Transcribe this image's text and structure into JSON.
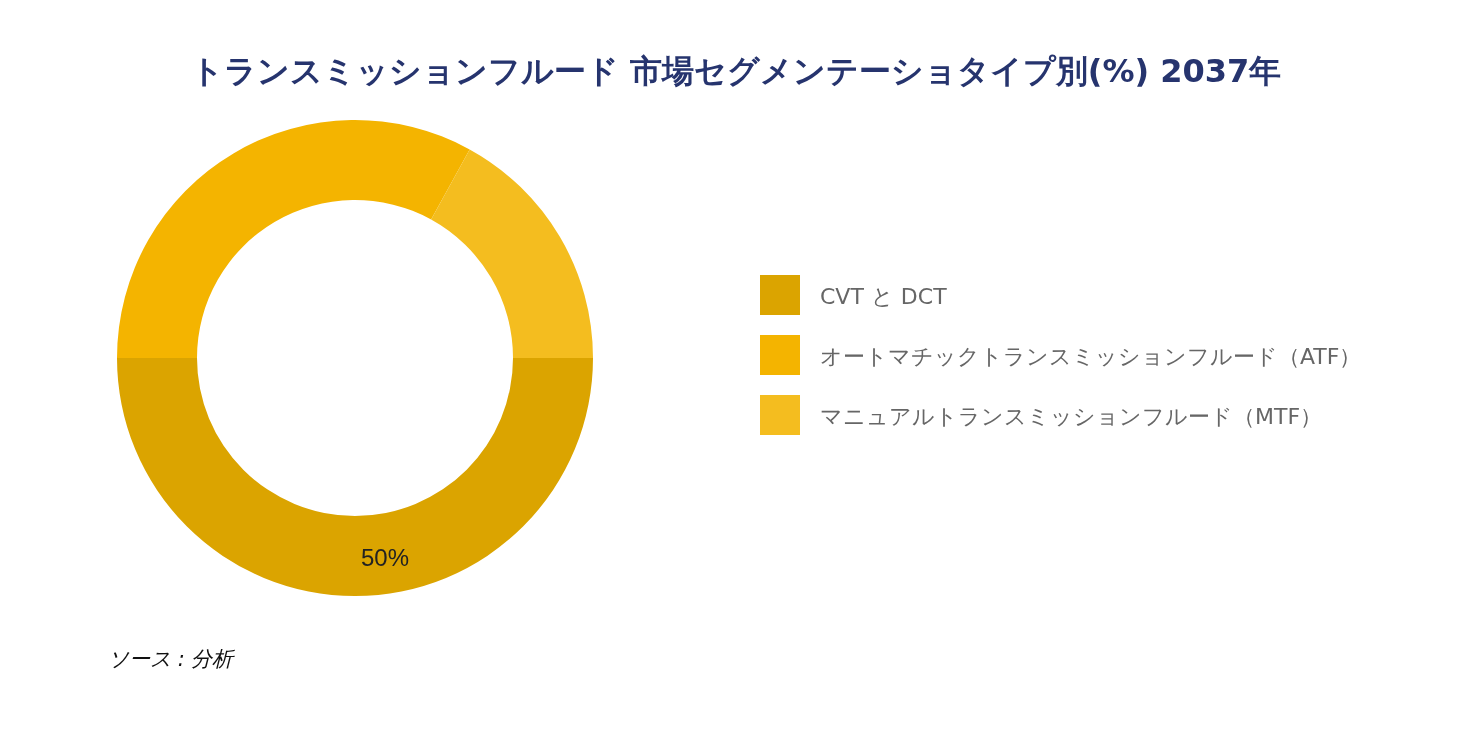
{
  "chart_data": {
    "type": "donut",
    "title": "トランスミッションフルード 市場セグメンテーショタイプ別(%) 2037年",
    "categories": [
      "CVT と DCT",
      "オートマチックトランスミッションフルード（ATF）",
      "マニュアルトランスミッションフルード（MTF）"
    ],
    "values": [
      50,
      33,
      17
    ],
    "colors": [
      "#dba400",
      "#f4b400",
      "#f4bd1f"
    ],
    "value_labels": [
      "50%",
      null,
      null
    ],
    "legend": "right",
    "annotations": [
      "ソース : 分析"
    ]
  }
}
